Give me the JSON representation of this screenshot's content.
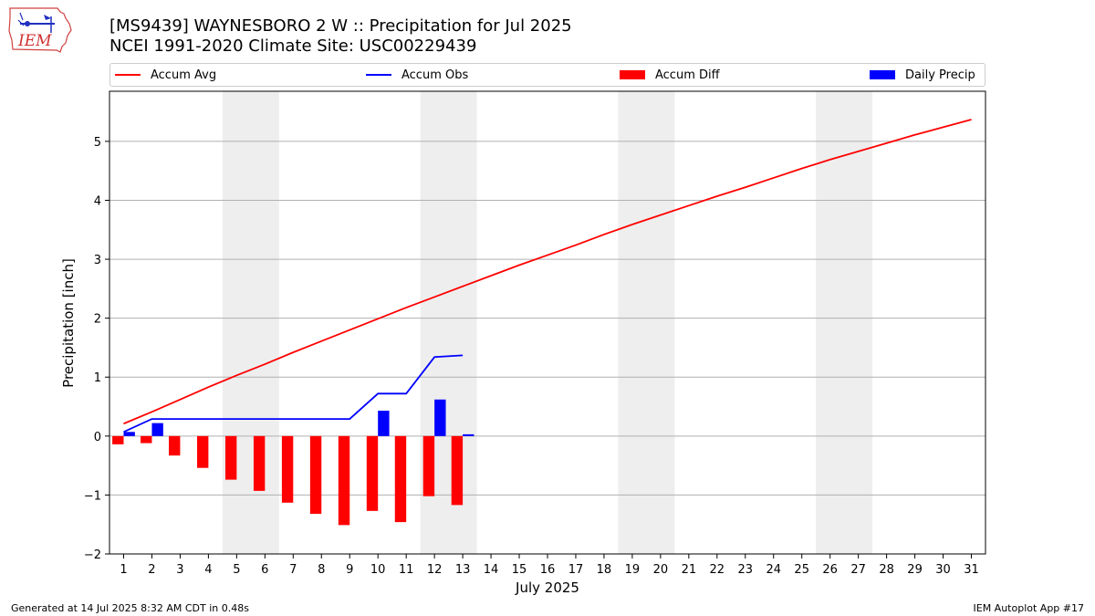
{
  "logo": {
    "text": "IEM"
  },
  "title": {
    "line1": "[MS9439] WAYNESBORO 2 W :: Precipitation for Jul 2025",
    "line2": "NCEI 1991-2020 Climate Site: USC00229439"
  },
  "footer": {
    "left": "Generated at 14 Jul 2025 8:32 AM CDT in 0.48s",
    "right": "IEM Autoplot App #17"
  },
  "colors": {
    "accum_avg": "#ff0000",
    "accum_obs": "#0000ff",
    "accum_diff": "#ff0000",
    "daily_precip": "#0000ff",
    "weekend_shade": "#eeeeee",
    "grid": "#b0b0b0"
  },
  "chart_data": {
    "type": "bar",
    "xlabel": "July 2025",
    "ylabel": "Precipitation [inch]",
    "xlim": [
      0.5,
      31.5
    ],
    "ylim": [
      -2.0,
      5.85
    ],
    "x_ticks": [
      1,
      2,
      3,
      4,
      5,
      6,
      7,
      8,
      9,
      10,
      11,
      12,
      13,
      14,
      15,
      16,
      17,
      18,
      19,
      20,
      21,
      22,
      23,
      24,
      25,
      26,
      27,
      28,
      29,
      30,
      31
    ],
    "y_ticks": [
      -2,
      -1,
      0,
      1,
      2,
      3,
      4,
      5
    ],
    "grid": "horizontal",
    "legend": {
      "position": "top",
      "entries": [
        "Accum Avg",
        "Accum Obs",
        "Accum Diff",
        "Daily Precip"
      ]
    },
    "shaded_weekends": [
      [
        4.5,
        6.5
      ],
      [
        11.5,
        13.5
      ],
      [
        18.5,
        20.5
      ],
      [
        25.5,
        27.5
      ]
    ],
    "series": [
      {
        "name": "Accum Avg",
        "kind": "line",
        "x": [
          1,
          2,
          3,
          4,
          5,
          6,
          7,
          8,
          9,
          10,
          11,
          12,
          13,
          14,
          15,
          16,
          17,
          18,
          19,
          20,
          21,
          22,
          23,
          24,
          25,
          26,
          27,
          28,
          29,
          30,
          31
        ],
        "values": [
          0.21,
          0.41,
          0.62,
          0.83,
          1.03,
          1.22,
          1.42,
          1.61,
          1.8,
          1.99,
          2.18,
          2.36,
          2.54,
          2.72,
          2.9,
          3.07,
          3.24,
          3.42,
          3.59,
          3.75,
          3.91,
          4.07,
          4.22,
          4.38,
          4.54,
          4.69,
          4.83,
          4.97,
          5.11,
          5.24,
          5.37
        ]
      },
      {
        "name": "Accum Obs",
        "kind": "line",
        "x": [
          1,
          2,
          3,
          4,
          5,
          6,
          7,
          8,
          9,
          10,
          11,
          12,
          13
        ],
        "values": [
          0.07,
          0.29,
          0.29,
          0.29,
          0.29,
          0.29,
          0.29,
          0.29,
          0.29,
          0.72,
          0.72,
          1.34,
          1.37
        ]
      },
      {
        "name": "Accum Diff",
        "kind": "bar",
        "offset": -0.2,
        "x": [
          1,
          2,
          3,
          4,
          5,
          6,
          7,
          8,
          9,
          10,
          11,
          12,
          13
        ],
        "values": [
          -0.14,
          -0.12,
          -0.33,
          -0.54,
          -0.74,
          -0.93,
          -1.13,
          -1.32,
          -1.51,
          -1.27,
          -1.46,
          -1.02,
          -1.17
        ]
      },
      {
        "name": "Daily Precip",
        "kind": "bar",
        "offset": 0.2,
        "x": [
          1,
          2,
          3,
          4,
          5,
          6,
          7,
          8,
          9,
          10,
          11,
          12,
          13
        ],
        "values": [
          0.07,
          0.22,
          0,
          0,
          0,
          0,
          0,
          0,
          0,
          0.43,
          0,
          0.62,
          0.03
        ]
      }
    ]
  }
}
